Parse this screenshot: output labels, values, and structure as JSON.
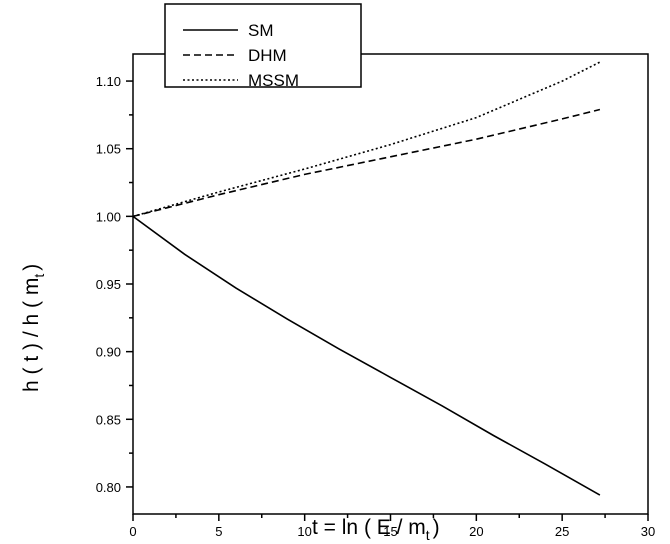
{
  "chart_data": {
    "type": "line",
    "xlabel": "t = ln ( E / m",
    "xlabel_sub": "t",
    "xlabel_close": ")",
    "ylabel": "h ( t ) / h ( m",
    "ylabel_sub": "t",
    "ylabel_close": ")",
    "xlim": [
      0,
      30
    ],
    "ylim": [
      0.78,
      1.12
    ],
    "xticks": [
      0,
      5,
      10,
      15,
      20,
      25,
      30
    ],
    "yticks": [
      0.8,
      0.85,
      0.9,
      0.95,
      1.0,
      1.05,
      1.1
    ],
    "grid": false,
    "legend_position": "top-left",
    "series": [
      {
        "name": "SM",
        "style": "solid",
        "color": "#000000",
        "x": [
          0,
          3,
          6,
          9,
          12,
          15,
          18,
          21,
          24,
          27.2
        ],
        "y": [
          1.0,
          0.972,
          0.947,
          0.924,
          0.902,
          0.881,
          0.86,
          0.838,
          0.817,
          0.794
        ]
      },
      {
        "name": "DHM",
        "style": "dashed",
        "color": "#000000",
        "x": [
          0,
          5,
          10,
          15,
          20,
          25,
          27.2
        ],
        "y": [
          1.0,
          1.016,
          1.031,
          1.044,
          1.057,
          1.072,
          1.079
        ]
      },
      {
        "name": "MSSM",
        "style": "dotted",
        "color": "#000000",
        "x": [
          0,
          5,
          10,
          15,
          20,
          25,
          27.2
        ],
        "y": [
          1.0,
          1.018,
          1.035,
          1.053,
          1.073,
          1.1,
          1.114
        ]
      }
    ]
  }
}
